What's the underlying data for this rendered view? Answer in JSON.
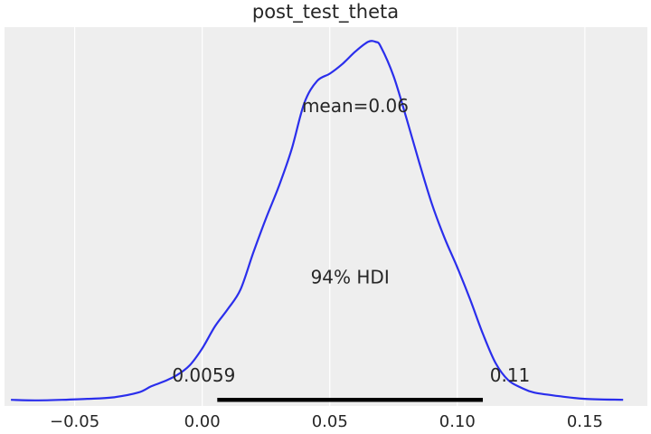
{
  "chart_data": {
    "type": "line",
    "title": "post_test_theta",
    "xlabel": "",
    "ylabel": "",
    "xlim": [
      -0.0775,
      0.1745
    ],
    "x_ticks": [
      {
        "value": -0.05,
        "label": "−0.05"
      },
      {
        "value": 0.0,
        "label": "0.00"
      },
      {
        "value": 0.05,
        "label": "0.05"
      },
      {
        "value": 0.1,
        "label": "0.10"
      },
      {
        "value": 0.15,
        "label": "0.15"
      }
    ],
    "grid": true,
    "y_axis_visible": false,
    "series": [
      {
        "color": "#2a2eec",
        "x": [
          -0.075,
          -0.065,
          -0.055,
          -0.045,
          -0.035,
          -0.025,
          -0.02,
          -0.015,
          -0.01,
          -0.005,
          0.0,
          0.005,
          0.01,
          0.015,
          0.02,
          0.025,
          0.03,
          0.035,
          0.04,
          0.045,
          0.05,
          0.055,
          0.06,
          0.065,
          0.068,
          0.07,
          0.075,
          0.08,
          0.085,
          0.09,
          0.095,
          0.1,
          0.105,
          0.11,
          0.115,
          0.12,
          0.125,
          0.13,
          0.14,
          0.15,
          0.165
        ],
        "y": [
          0.0,
          -0.002,
          0.0,
          0.004,
          0.01,
          0.03,
          0.055,
          0.075,
          0.1,
          0.14,
          0.21,
          0.3,
          0.37,
          0.45,
          0.6,
          0.74,
          0.87,
          1.02,
          1.21,
          1.3,
          1.33,
          1.37,
          1.42,
          1.46,
          1.46,
          1.44,
          1.32,
          1.15,
          0.97,
          0.8,
          0.66,
          0.54,
          0.41,
          0.27,
          0.15,
          0.08,
          0.05,
          0.03,
          0.015,
          0.004,
          0.0
        ]
      }
    ],
    "ylim": [
      -0.025,
      1.52
    ],
    "mean_label": "mean=0.06",
    "mean_label_pos": {
      "x": 0.06,
      "y": 1.2
    },
    "hdi": {
      "label": "94% HDI",
      "low": 0.0059,
      "high": 0.11,
      "low_label": "0.0059",
      "high_label": "0.11",
      "label_y": 0.5
    },
    "colors": {
      "background": "#eeeeee",
      "grid": "#ffffff",
      "line": "#2a2eec",
      "hdi_bar": "#000000",
      "text": "#262626"
    }
  }
}
